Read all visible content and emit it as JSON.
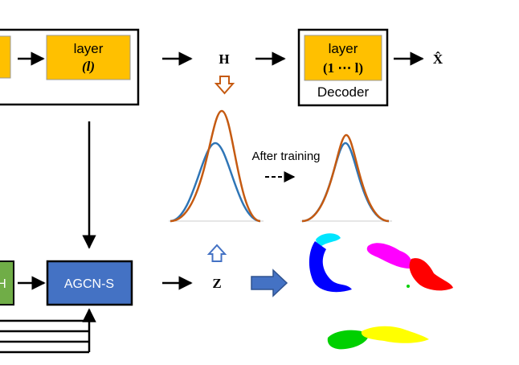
{
  "encoder_layer": {
    "line1": "layer",
    "line2": "(l)"
  },
  "hidden_label": "H",
  "decoder": {
    "line1": "layer",
    "line2": "(1 ⋯ l)",
    "title": "Decoder"
  },
  "output_label": "X̂",
  "after_training": "After training",
  "left_green_label": "H",
  "agcn": "AGCN-S",
  "latent_label": "Z",
  "colors": {
    "layer_fill": "#FFC000",
    "agcn_fill": "#4472C4",
    "green_fill": "#70AD47",
    "orange_arrow": "#C55A11",
    "blue_arrow": "#4472C4",
    "curve_blue": "#2E75B6",
    "curve_orange": "#C55A11"
  },
  "clusters": [
    "cyan",
    "blue",
    "magenta",
    "red",
    "green",
    "yellow"
  ]
}
